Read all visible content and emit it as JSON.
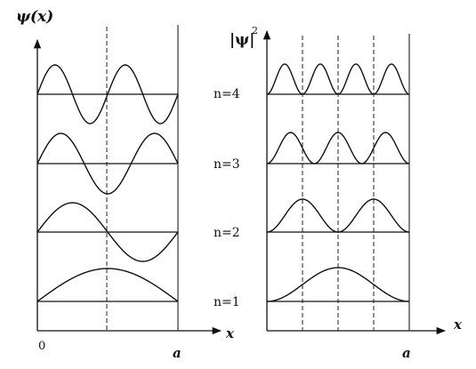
{
  "labels": {
    "left_ylabel": "ψ(x)",
    "right_ylabel": "|ψ|",
    "right_ylabel_sup": "2",
    "left_origin": "0",
    "left_xlabel": "x",
    "right_xlabel": "x",
    "left_a": "a",
    "right_a": "a"
  },
  "levels": [
    {
      "label": "n=4",
      "n": 4
    },
    {
      "label": "n=3",
      "n": 3
    },
    {
      "label": "n=2",
      "n": 2
    },
    {
      "label": "n=1",
      "n": 1
    }
  ],
  "colors": {
    "ink": "#111111",
    "background": "#ffffff"
  }
}
